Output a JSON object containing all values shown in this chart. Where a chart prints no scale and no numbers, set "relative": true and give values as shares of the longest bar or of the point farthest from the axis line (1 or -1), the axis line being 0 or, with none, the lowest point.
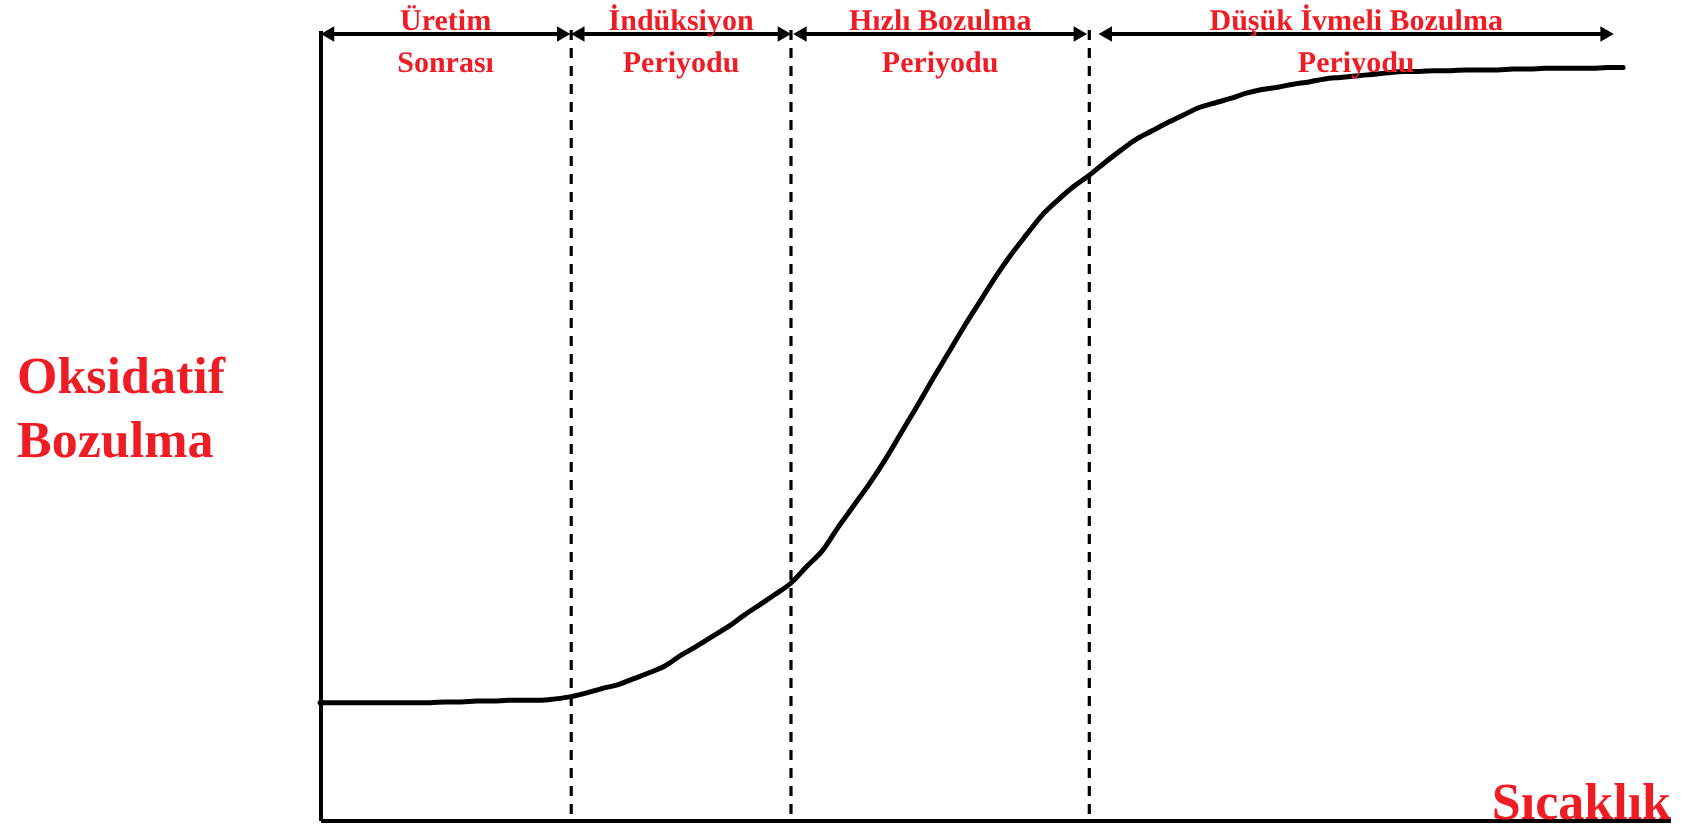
{
  "chart_data": {
    "type": "line",
    "relative": true,
    "xlabel": "Sıcaklık",
    "ylabel": "Oksidatif Bozulma",
    "categories": [
      null,
      null,
      null,
      null,
      null,
      null,
      null,
      null,
      null,
      null,
      null,
      null,
      null,
      null,
      null,
      null,
      null,
      null,
      null,
      null,
      null,
      null,
      null,
      null,
      null,
      null,
      null,
      null,
      null,
      null,
      null,
      null,
      null,
      null,
      null,
      null,
      null,
      null,
      null,
      null,
      null,
      null,
      null,
      null,
      null,
      null,
      null,
      null,
      null,
      null,
      null,
      null,
      null,
      null,
      null,
      null,
      null,
      null,
      null,
      null,
      null,
      null,
      null,
      null,
      null,
      null,
      null,
      null,
      null,
      null,
      null,
      null,
      null,
      null,
      null,
      null,
      null,
      null,
      null,
      null,
      null,
      null,
      null,
      null
    ],
    "tick_labels": false,
    "grid": "x",
    "marker": "none",
    "line_style": "solid",
    "series": [
      {
        "color": "#000000",
        "values": [
          0.156,
          0.156,
          0.156,
          0.156,
          0.156,
          0.156,
          0.156,
          0.156,
          0.157,
          0.157,
          0.158,
          0.158,
          0.159,
          0.159,
          0.159,
          0.161,
          0.164,
          0.169,
          0.175,
          0.18,
          0.188,
          0.196,
          0.205,
          0.219,
          0.231,
          0.244,
          0.257,
          0.272,
          0.286,
          0.3,
          0.315,
          0.337,
          0.358,
          0.389,
          0.418,
          0.447,
          0.479,
          0.514,
          0.549,
          0.585,
          0.62,
          0.655,
          0.688,
          0.721,
          0.751,
          0.778,
          0.804,
          0.824,
          0.842,
          0.857,
          0.874,
          0.89,
          0.905,
          0.916,
          0.927,
          0.937,
          0.947,
          0.953,
          0.959,
          0.966,
          0.971,
          0.974,
          0.978,
          0.981,
          0.985,
          0.987,
          0.989,
          0.991,
          0.993,
          0.995,
          0.995,
          0.996,
          0.996,
          0.997,
          0.997,
          0.997,
          0.998,
          0.998,
          0.999,
          0.999,
          0.999,
          0.999,
          1.0,
          1.0
        ]
      }
    ],
    "annotations": [
      "Üretim Sonrası",
      "İndüksiyon Periyodu",
      "Hızlı Bozulma Periyodu",
      "Düşük İvmeli Bozulma Periyodu"
    ]
  }
}
